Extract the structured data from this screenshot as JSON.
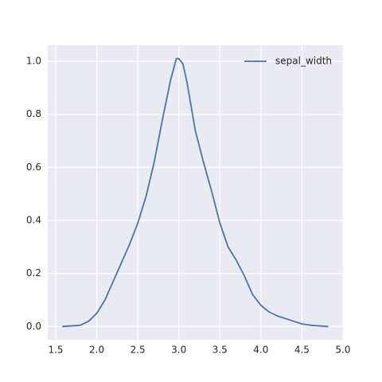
{
  "chart_data": {
    "type": "line",
    "x": [
      1.58,
      1.8,
      1.9,
      2.0,
      2.1,
      2.2,
      2.3,
      2.4,
      2.5,
      2.6,
      2.7,
      2.8,
      2.9,
      2.97,
      3.0,
      3.05,
      3.1,
      3.2,
      3.3,
      3.4,
      3.5,
      3.6,
      3.7,
      3.8,
      3.9,
      4.0,
      4.1,
      4.2,
      4.3,
      4.4,
      4.5,
      4.6,
      4.82
    ],
    "series": [
      {
        "name": "sepal_width",
        "color": "#4c72b0",
        "values": [
          0.0,
          0.005,
          0.02,
          0.05,
          0.1,
          0.17,
          0.24,
          0.31,
          0.39,
          0.49,
          0.62,
          0.78,
          0.93,
          1.01,
          1.01,
          0.99,
          0.92,
          0.74,
          0.62,
          0.51,
          0.39,
          0.3,
          0.25,
          0.19,
          0.12,
          0.08,
          0.055,
          0.04,
          0.03,
          0.02,
          0.01,
          0.005,
          0.0
        ]
      }
    ],
    "xlim": [
      1.403,
      5.01
    ],
    "ylim": [
      -0.05,
      1.06
    ],
    "xticks": [
      1.5,
      {
        "value": 2.0,
        "label": "2.0"
      },
      2.5,
      {
        "value": 3.0,
        "label": "3.0"
      },
      3.5,
      {
        "value": 4.0,
        "label": "4.0"
      },
      4.5,
      {
        "value": 5.0,
        "label": "5.0"
      }
    ],
    "yticks": [
      {
        "value": 0.0,
        "label": "0.0"
      },
      0.2,
      0.4,
      0.6,
      0.8,
      {
        "value": 1.0,
        "label": "1.0"
      }
    ],
    "grid": true,
    "legend": "upper right"
  }
}
